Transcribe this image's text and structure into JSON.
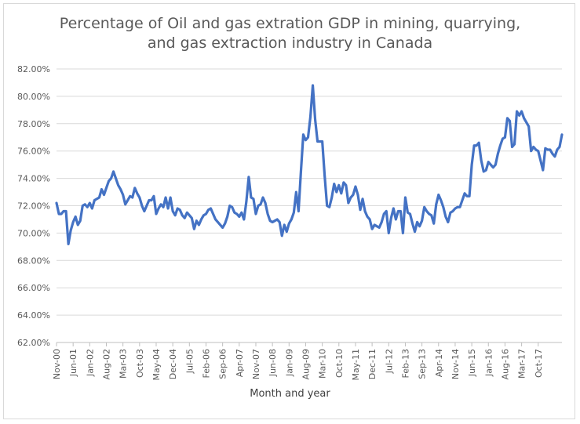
{
  "chart_data": {
    "type": "line",
    "title_lines": [
      "Percentage of Oil and gas extration GDP in mining, quarrying,",
      "and gas extraction industry in Canada"
    ],
    "xlabel": "Month and year",
    "ylabel": "",
    "ylim": [
      62,
      82
    ],
    "yticks": [
      "62.00%",
      "64.00%",
      "66.00%",
      "68.00%",
      "70.00%",
      "72.00%",
      "74.00%",
      "76.00%",
      "78.00%",
      "80.00%",
      "82.00%"
    ],
    "xticks": [
      "Nov-00",
      "Jun-01",
      "Jan-02",
      "Aug-02",
      "Mar-03",
      "Oct-03",
      "May-04",
      "Dec-04",
      "Jul-05",
      "Feb-06",
      "Sep-06",
      "Apr-07",
      "Nov-07",
      "Jun-08",
      "Jan-09",
      "Aug-09",
      "Mar-10",
      "Oct-10",
      "May-11",
      "Dec-11",
      "Jul-12",
      "Feb-13",
      "Sep-13",
      "Apr-14",
      "Nov-14",
      "Jun-15",
      "Jan-16",
      "Aug-16",
      "Mar-17",
      "Oct-17"
    ],
    "x_start": "Nov-00",
    "x_end": "Dec-17",
    "grid": true,
    "legend": "none",
    "line_color": "#4472c4",
    "values": [
      72.2,
      71.4,
      71.4,
      71.6,
      71.6,
      69.2,
      70.2,
      70.8,
      71.2,
      70.6,
      70.9,
      72.0,
      72.1,
      71.9,
      72.2,
      71.8,
      72.4,
      72.5,
      72.6,
      73.2,
      72.8,
      73.3,
      73.8,
      74.0,
      74.5,
      74.0,
      73.5,
      73.2,
      72.8,
      72.1,
      72.4,
      72.7,
      72.6,
      73.3,
      72.9,
      72.6,
      72.0,
      71.6,
      72.0,
      72.4,
      72.4,
      72.7,
      71.4,
      71.8,
      72.1,
      71.9,
      72.6,
      71.8,
      72.6,
      71.6,
      71.3,
      71.8,
      71.7,
      71.3,
      71.1,
      71.5,
      71.3,
      71.1,
      70.3,
      70.9,
      70.6,
      71.0,
      71.3,
      71.4,
      71.7,
      71.8,
      71.4,
      71.0,
      70.8,
      70.6,
      70.4,
      70.7,
      71.2,
      72.0,
      71.9,
      71.5,
      71.4,
      71.2,
      71.5,
      71.0,
      72.3,
      74.1,
      72.6,
      72.5,
      71.4,
      72.0,
      72.1,
      72.6,
      72.2,
      71.4,
      70.9,
      70.8,
      70.9,
      71.0,
      70.8,
      69.8,
      70.6,
      70.1,
      70.7,
      71.0,
      71.5,
      73.0,
      71.6,
      74.5,
      77.2,
      76.8,
      77.0,
      78.5,
      80.8,
      78.3,
      76.7,
      76.7,
      76.7,
      74.2,
      72.0,
      71.9,
      72.6,
      73.6,
      73.0,
      73.5,
      72.9,
      73.7,
      73.5,
      72.2,
      72.6,
      72.8,
      73.4,
      72.8,
      71.7,
      72.5,
      71.6,
      71.2,
      71.0,
      70.3,
      70.6,
      70.5,
      70.4,
      70.8,
      71.4,
      71.6,
      70.0,
      71.1,
      71.8,
      71.0,
      71.6,
      71.6,
      70.0,
      72.6,
      71.5,
      71.4,
      70.7,
      70.1,
      70.8,
      70.5,
      70.9,
      71.9,
      71.6,
      71.4,
      71.3,
      70.7,
      72.1,
      72.8,
      72.4,
      71.9,
      71.2,
      70.8,
      71.5,
      71.6,
      71.8,
      71.9,
      71.9,
      72.4,
      72.9,
      72.7,
      72.7,
      75.0,
      76.4,
      76.4,
      76.6,
      75.3,
      74.5,
      74.6,
      75.2,
      75.0,
      74.8,
      75.0,
      75.8,
      76.4,
      76.9,
      77.0,
      78.4,
      78.2,
      76.3,
      76.5,
      78.9,
      78.6,
      78.9,
      78.4,
      78.1,
      77.8,
      76.0,
      76.3,
      76.1,
      76.0,
      75.3,
      74.6,
      76.2,
      76.1,
      76.1,
      75.8,
      75.6,
      76.1,
      76.3,
      77.2
    ]
  }
}
